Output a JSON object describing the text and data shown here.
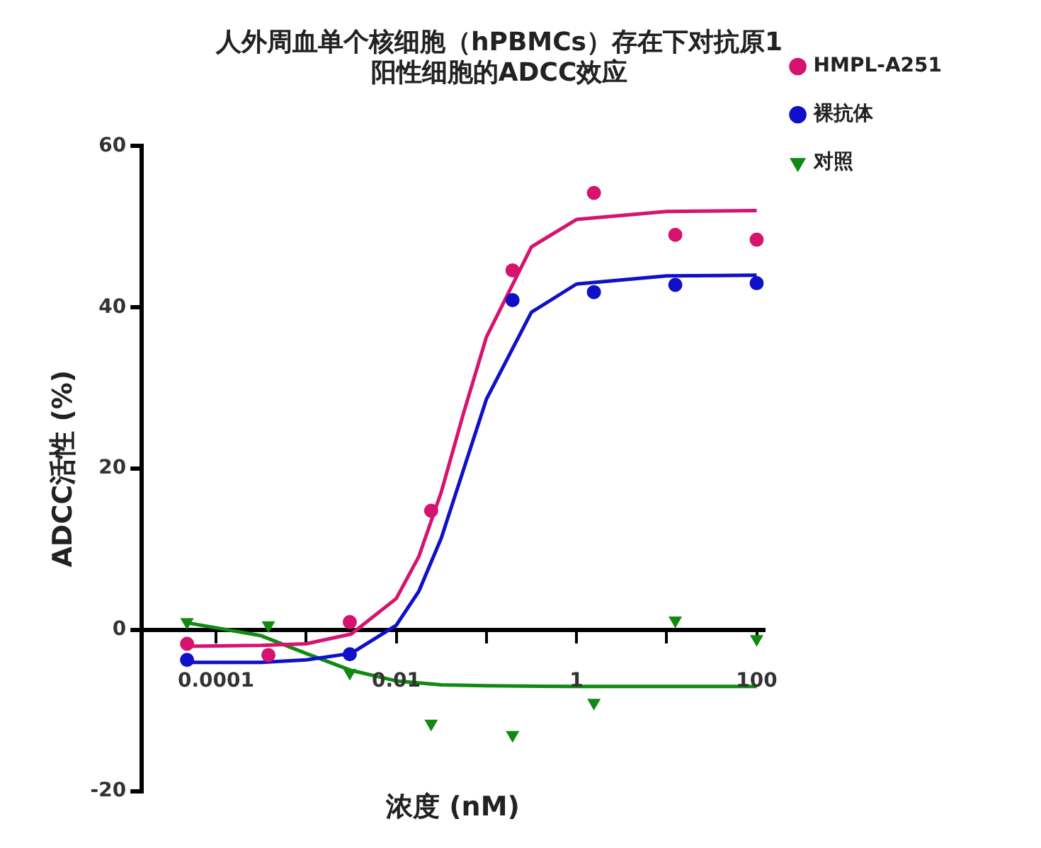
{
  "chart_data": {
    "type": "scatter",
    "title": "人外周血单个核细胞（hPBMCs）存在下对抗原1\n阳性细胞的ADCC效应",
    "xlabel": "浓度 (nM)",
    "ylabel": "ADCC活性 (%)",
    "log": "x",
    "xlim": [
      1.5e-05,
      120
    ],
    "xticks": [
      0.0001,
      {
        "value": 0.001,
        "label": null
      },
      0.01,
      {
        "value": 0.1,
        "label": null
      },
      1,
      {
        "value": 10,
        "label": null
      },
      100
    ],
    "ylim": [
      -20,
      60
    ],
    "yticks": [
      -20,
      0,
      20,
      40,
      60
    ],
    "grid": false,
    "legend": "right",
    "series": [
      {
        "name": "HMPL-A251",
        "color": "#d6136e",
        "marker": "circle",
        "x": [
          4.77e-05,
          0.0003815,
          0.003052,
          0.02441,
          0.1953,
          1.5625,
          12.5,
          100
        ],
        "values": [
          -1.7,
          -3.1,
          1.0,
          14.8,
          44.6,
          54.2,
          49.0,
          48.4
        ]
      },
      {
        "name": "裸抗体",
        "color": "#1010c8",
        "marker": "circle",
        "x": [
          4.77e-05,
          0.0003815,
          0.003052,
          0.02441,
          0.1953,
          1.5625,
          12.5,
          100
        ],
        "values": [
          -3.7,
          null,
          -3.0,
          null,
          40.9,
          41.9,
          42.8,
          43.0
        ]
      },
      {
        "name": "对照",
        "color": "#118a11",
        "marker": "triangle",
        "x": [
          4.77e-05,
          0.0003815,
          0.003052,
          0.02441,
          0.1953,
          1.5625,
          12.5,
          100
        ],
        "values": [
          1.0,
          0.6,
          -5.3,
          -11.6,
          -13.0,
          -9.0,
          1.2,
          -1.1
        ]
      },
      {
        "type": "line",
        "color": "#d6136e",
        "marker": "none",
        "x": [
          4.8e-05,
          0.000316,
          0.001,
          0.00316,
          0.01,
          0.0178,
          0.0316,
          0.0562,
          0.1,
          0.316,
          1,
          10,
          100
        ],
        "values": [
          -2.0,
          -1.9,
          -1.7,
          -0.5,
          3.9,
          9.1,
          17.1,
          27.0,
          36.3,
          47.5,
          50.9,
          51.9,
          52.0
        ]
      },
      {
        "type": "line",
        "color": "#1010c8",
        "marker": "none",
        "x": [
          4.8e-05,
          0.000316,
          0.001,
          0.00316,
          0.01,
          0.0178,
          0.0316,
          0.0562,
          0.1,
          0.316,
          1,
          10,
          100
        ],
        "values": [
          -4.0,
          -4.0,
          -3.7,
          -2.9,
          0.6,
          4.8,
          11.4,
          20.0,
          28.6,
          39.4,
          42.9,
          43.9,
          44.0
        ]
      },
      {
        "type": "line",
        "color": "#118a11",
        "marker": "none",
        "x": [
          4.8e-05,
          0.000316,
          0.001,
          0.00316,
          0.01,
          0.0316,
          0.1,
          1,
          100
        ],
        "values": [
          0.9,
          -0.7,
          -2.9,
          -5.0,
          -6.3,
          -6.8,
          -6.9,
          -7.0,
          -7.0
        ]
      }
    ]
  }
}
